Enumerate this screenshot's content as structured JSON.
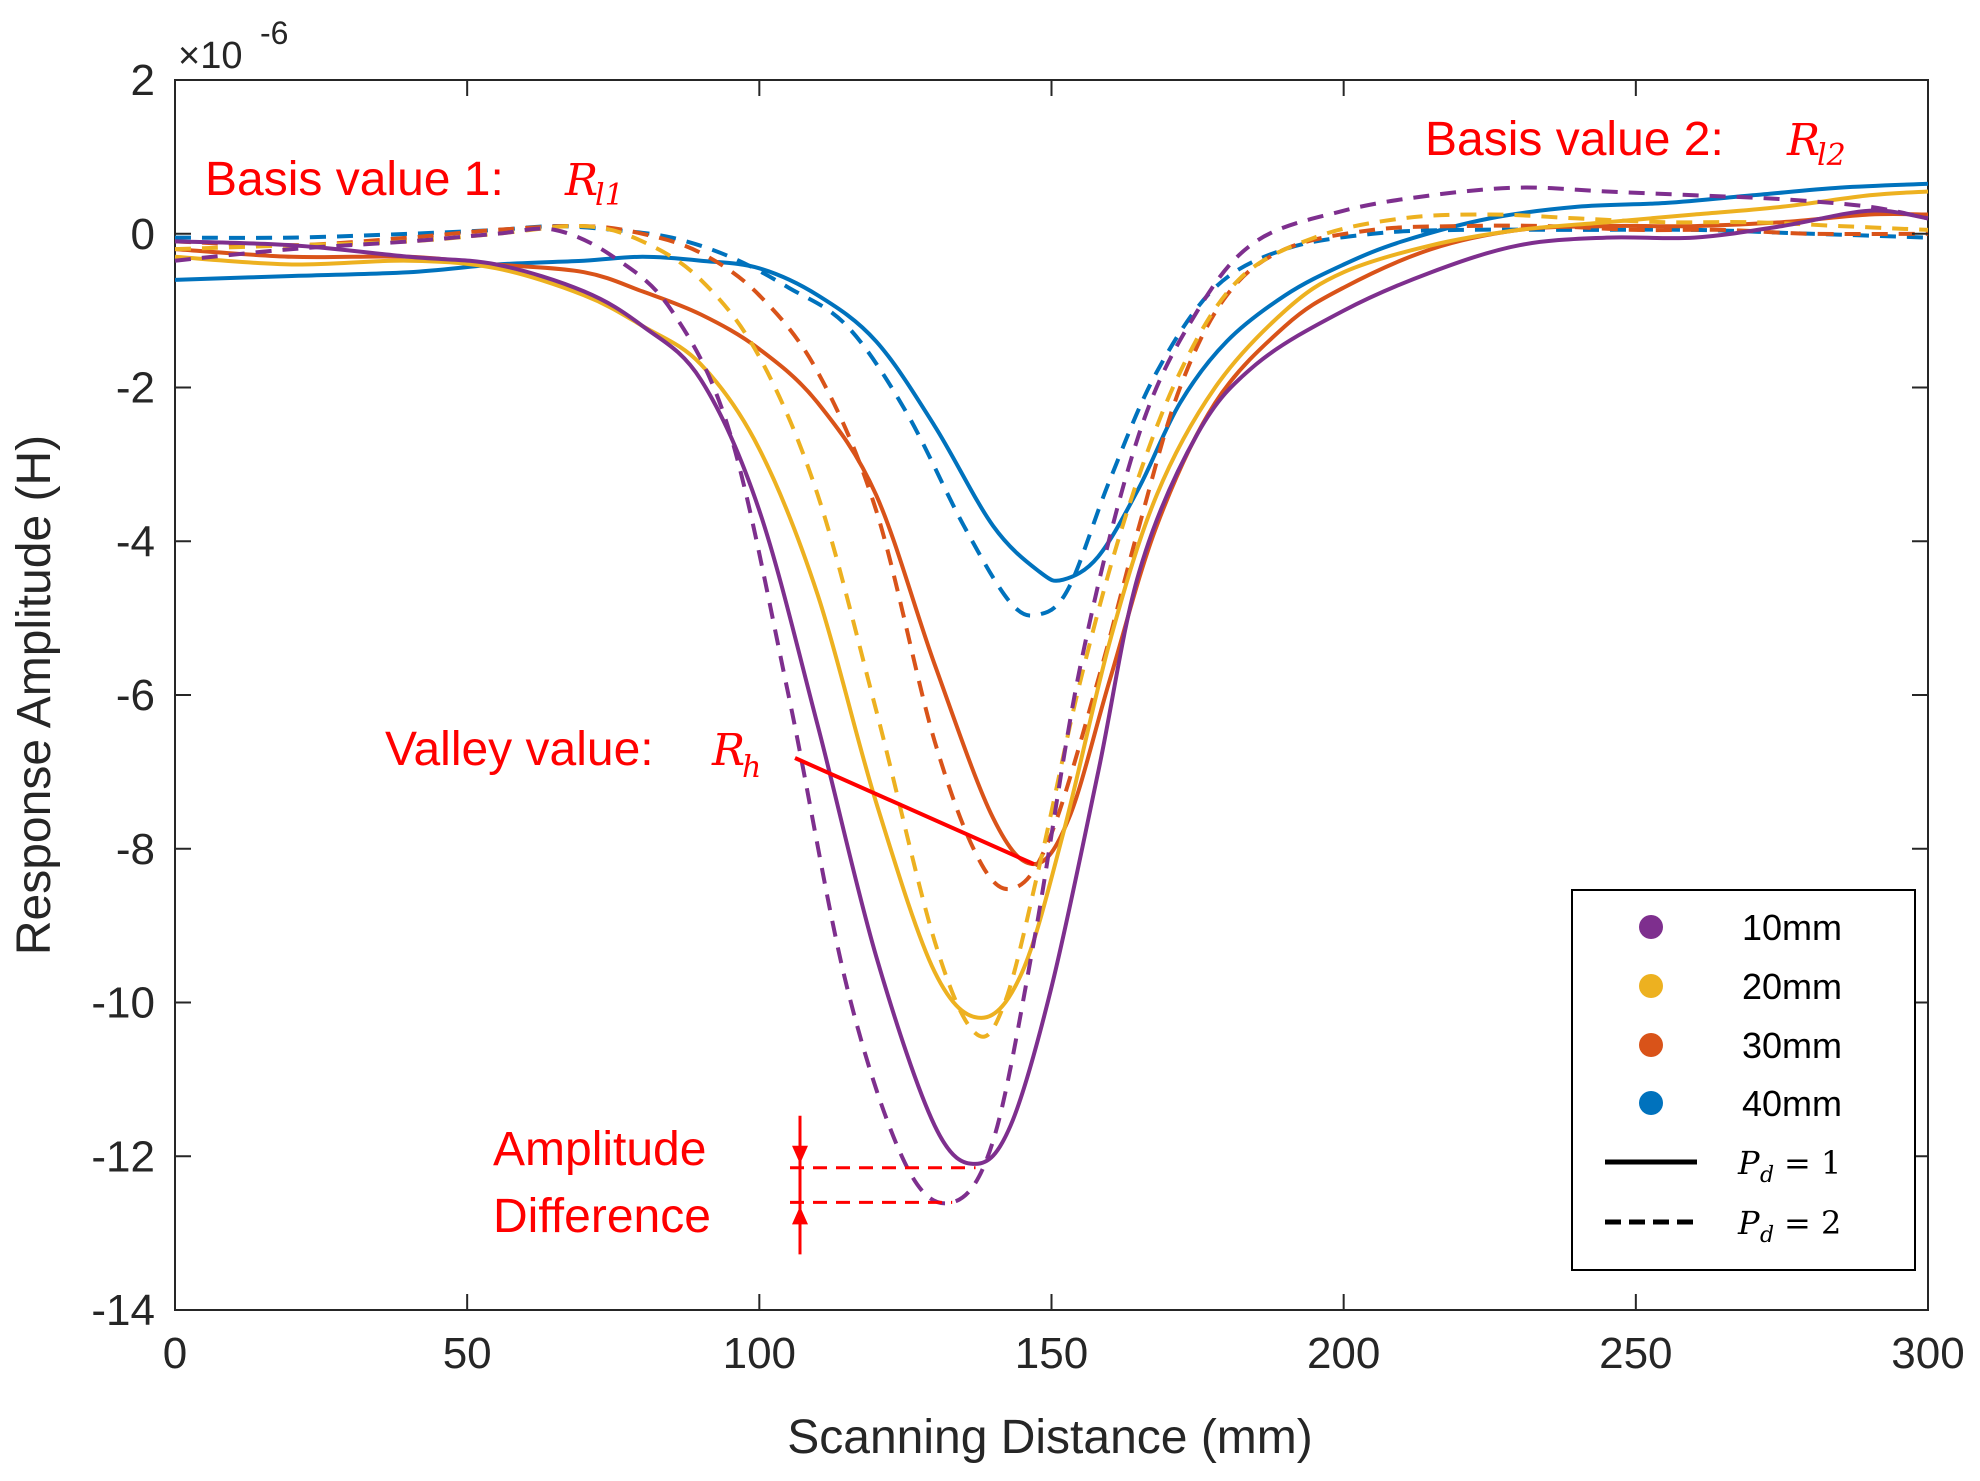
{
  "chart_data": {
    "type": "line",
    "xlabel": "Scanning Distance (mm)",
    "ylabel": "Response Amplitude (H)",
    "exponent_label": "×10",
    "exponent_power": "-6",
    "xlim": [
      0,
      300
    ],
    "ylim": [
      -14,
      2
    ],
    "x_ticks": [
      0,
      50,
      100,
      150,
      200,
      250,
      300
    ],
    "x_tick_labels": [
      "0",
      "50",
      "100",
      "150",
      "200",
      "250",
      "300"
    ],
    "y_ticks": [
      2,
      0,
      -2,
      -4,
      -6,
      -8,
      -10,
      -12,
      -14
    ],
    "y_tick_labels": [
      "2",
      "0",
      "-2",
      "-4",
      "-6",
      "-8",
      "-10",
      "-12",
      "-14"
    ],
    "grid": false,
    "series": [
      {
        "name": "10mm, Pd = 1",
        "color": "#7e2f8e",
        "style": "solid",
        "x": [
          0,
          20,
          40,
          55,
          70,
          80,
          90,
          100,
          110,
          120,
          130,
          137,
          143,
          150,
          158,
          165,
          175,
          185,
          200,
          215,
          230,
          245,
          260,
          275,
          290,
          300
        ],
        "y": [
          -0.1,
          -0.15,
          -0.3,
          -0.4,
          -0.75,
          -1.2,
          -1.9,
          -3.6,
          -6.4,
          -9.4,
          -11.6,
          -12.1,
          -11.6,
          -9.8,
          -7.0,
          -4.4,
          -2.6,
          -1.7,
          -1.0,
          -0.5,
          -0.15,
          -0.05,
          -0.05,
          0.1,
          0.3,
          0.2
        ]
      },
      {
        "name": "10mm, Pd = 2",
        "color": "#7e2f8e",
        "style": "dashed",
        "x": [
          0,
          20,
          40,
          55,
          65,
          75,
          85,
          95,
          105,
          115,
          125,
          133,
          140,
          147,
          155,
          165,
          175,
          185,
          200,
          215,
          230,
          245,
          260,
          275,
          290,
          300
        ],
        "y": [
          -0.35,
          -0.2,
          -0.1,
          0.0,
          0.05,
          -0.3,
          -1.0,
          -2.6,
          -6.0,
          -9.8,
          -12.1,
          -12.6,
          -11.8,
          -9.2,
          -5.6,
          -2.6,
          -1.0,
          -0.1,
          0.3,
          0.5,
          0.6,
          0.55,
          0.5,
          0.45,
          0.35,
          0.2
        ]
      },
      {
        "name": "20mm, Pd = 1",
        "color": "#edb120",
        "style": "solid",
        "x": [
          0,
          20,
          40,
          55,
          70,
          80,
          90,
          100,
          110,
          120,
          130,
          138,
          145,
          152,
          160,
          168,
          178,
          190,
          200,
          215,
          230,
          245,
          260,
          275,
          290,
          300
        ],
        "y": [
          -0.3,
          -0.4,
          -0.35,
          -0.45,
          -0.8,
          -1.2,
          -1.7,
          -2.8,
          -4.7,
          -7.4,
          -9.6,
          -10.2,
          -9.6,
          -7.8,
          -5.3,
          -3.4,
          -2.0,
          -1.0,
          -0.5,
          -0.15,
          0.05,
          0.15,
          0.25,
          0.35,
          0.5,
          0.55
        ]
      },
      {
        "name": "20mm, Pd = 2",
        "color": "#edb120",
        "style": "dashed",
        "x": [
          0,
          20,
          40,
          55,
          70,
          80,
          90,
          100,
          110,
          120,
          130,
          137,
          142,
          148,
          155,
          163,
          172,
          182,
          195,
          210,
          225,
          240,
          255,
          270,
          285,
          300
        ],
        "y": [
          -0.2,
          -0.15,
          -0.1,
          0.0,
          0.1,
          -0.1,
          -0.6,
          -1.6,
          -3.4,
          -6.2,
          -9.2,
          -10.4,
          -10.0,
          -8.2,
          -5.8,
          -3.6,
          -1.8,
          -0.6,
          -0.05,
          0.2,
          0.25,
          0.2,
          0.15,
          0.15,
          0.1,
          0.05
        ]
      },
      {
        "name": "30mm, Pd = 1",
        "color": "#d95319",
        "style": "solid",
        "x": [
          0,
          20,
          40,
          55,
          70,
          80,
          90,
          100,
          110,
          120,
          130,
          140,
          147,
          153,
          160,
          168,
          178,
          190,
          200,
          215,
          230,
          245,
          260,
          275,
          290,
          300
        ],
        "y": [
          -0.2,
          -0.3,
          -0.3,
          -0.4,
          -0.5,
          -0.75,
          -1.05,
          -1.5,
          -2.2,
          -3.4,
          -5.6,
          -7.6,
          -8.2,
          -7.6,
          -5.8,
          -3.8,
          -2.2,
          -1.2,
          -0.7,
          -0.2,
          0.05,
          0.1,
          0.1,
          0.15,
          0.25,
          0.25
        ]
      },
      {
        "name": "30mm, Pd = 2",
        "color": "#d95319",
        "style": "dashed",
        "x": [
          0,
          20,
          40,
          55,
          70,
          80,
          90,
          100,
          110,
          120,
          130,
          138,
          144,
          150,
          158,
          165,
          172,
          180,
          190,
          205,
          220,
          235,
          250,
          265,
          280,
          300
        ],
        "y": [
          -0.1,
          -0.15,
          -0.05,
          0.05,
          0.1,
          0.0,
          -0.25,
          -0.8,
          -1.8,
          -3.6,
          -6.6,
          -8.2,
          -8.5,
          -7.8,
          -5.8,
          -3.8,
          -2.0,
          -0.8,
          -0.2,
          0.05,
          0.1,
          0.1,
          0.05,
          0.05,
          0.0,
          0.0
        ]
      },
      {
        "name": "40mm, Pd = 1",
        "color": "#0072bd",
        "style": "solid",
        "x": [
          0,
          20,
          40,
          55,
          70,
          80,
          90,
          100,
          110,
          120,
          130,
          140,
          148,
          152,
          158,
          165,
          172,
          180,
          190,
          200,
          210,
          225,
          240,
          255,
          270,
          285,
          300
        ],
        "y": [
          -0.6,
          -0.55,
          -0.5,
          -0.4,
          -0.35,
          -0.3,
          -0.35,
          -0.45,
          -0.8,
          -1.4,
          -2.5,
          -3.8,
          -4.4,
          -4.5,
          -4.2,
          -3.3,
          -2.2,
          -1.4,
          -0.8,
          -0.4,
          -0.1,
          0.2,
          0.35,
          0.4,
          0.5,
          0.6,
          0.65
        ]
      },
      {
        "name": "40mm, Pd = 2",
        "color": "#0072bd",
        "style": "dashed",
        "x": [
          0,
          20,
          40,
          55,
          65,
          75,
          85,
          95,
          105,
          115,
          125,
          135,
          143,
          148,
          153,
          160,
          168,
          178,
          190,
          205,
          220,
          240,
          260,
          280,
          300
        ],
        "y": [
          -0.05,
          -0.05,
          0.0,
          0.05,
          0.1,
          0.05,
          -0.05,
          -0.3,
          -0.7,
          -1.2,
          -2.3,
          -3.8,
          -4.8,
          -4.95,
          -4.6,
          -3.2,
          -1.8,
          -0.7,
          -0.2,
          0.0,
          0.05,
          0.05,
          0.05,
          0.0,
          -0.05
        ]
      }
    ],
    "legend": {
      "placement": "bottom-right",
      "entries": [
        {
          "label": "10mm",
          "color": "#7e2f8e",
          "kind": "dot"
        },
        {
          "label": "20mm",
          "color": "#edb120",
          "kind": "dot"
        },
        {
          "label": "30mm",
          "color": "#d95319",
          "kind": "dot"
        },
        {
          "label": "40mm",
          "color": "#0072bd",
          "kind": "dot"
        },
        {
          "label_sym": "P",
          "label_sub": "d",
          "label_eq": "= 1",
          "color": "#000000",
          "kind": "solid"
        },
        {
          "label_sym": "P",
          "label_sub": "d",
          "label_eq": "= 2",
          "color": "#000000",
          "kind": "dashed"
        }
      ]
    },
    "annotations": {
      "basis1": {
        "text": "Basis value 1: ",
        "sym": "R",
        "sub": "l1"
      },
      "basis2": {
        "text": "Basis value 2: ",
        "sym": "R",
        "sub": "l2"
      },
      "valley": {
        "text": "Valley value: ",
        "sym": "R",
        "sub": "h",
        "arrow_to": [
          147,
          -8.2
        ]
      },
      "amplitude_line1": "Amplitude",
      "amplitude_line2": "Difference",
      "amplitude_levels": [
        -12.15,
        -12.6
      ],
      "annotation_color": "#ff0000"
    }
  }
}
